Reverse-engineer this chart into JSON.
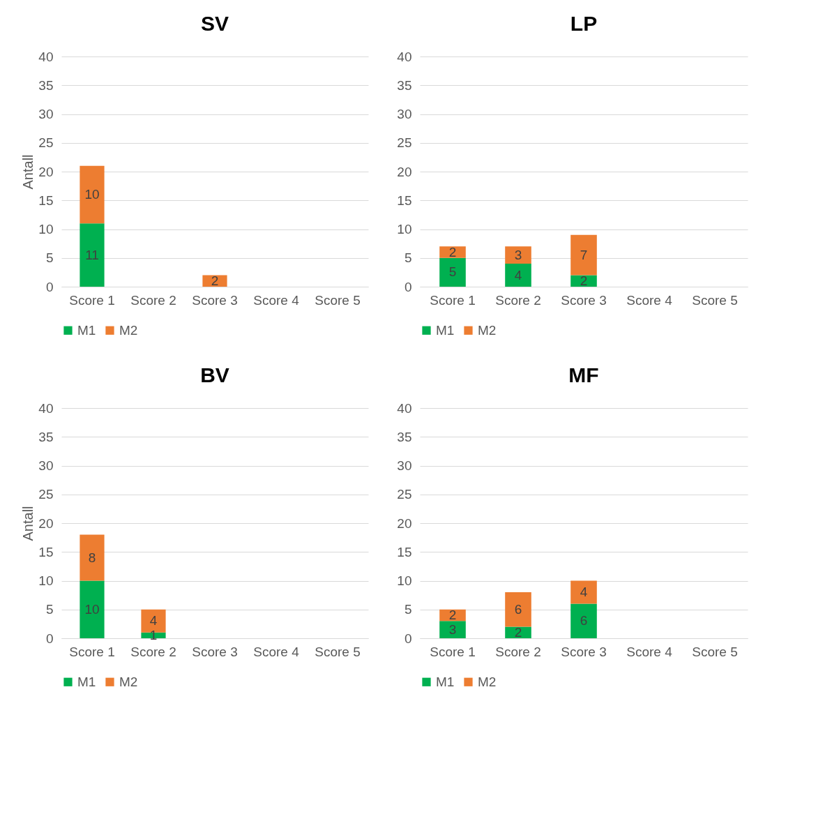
{
  "chart_data": [
    {
      "type": "bar",
      "title": "SV",
      "ylabel": "Antall",
      "categories": [
        "Score 1",
        "Score 2",
        "Score 3",
        "Score 4",
        "Score 5"
      ],
      "stacked": true,
      "ylim": [
        0,
        40
      ],
      "yticks": [
        0,
        5,
        10,
        15,
        20,
        25,
        30,
        35,
        40
      ],
      "grid": "y",
      "legend": "bottom",
      "data_labels": true,
      "series": [
        {
          "name": "M1",
          "color": "#00b050",
          "values": [
            11,
            null,
            null,
            null,
            null
          ]
        },
        {
          "name": "M2",
          "color": "#ed7d31",
          "values": [
            10,
            null,
            2,
            null,
            null
          ]
        }
      ]
    },
    {
      "type": "bar",
      "title": "LP",
      "categories": [
        "Score 1",
        "Score 2",
        "Score 3",
        "Score 4",
        "Score 5"
      ],
      "stacked": true,
      "ylim": [
        0,
        40
      ],
      "yticks": [
        0,
        5,
        10,
        15,
        20,
        25,
        30,
        35,
        40
      ],
      "grid": "y",
      "legend": "bottom",
      "data_labels": true,
      "series": [
        {
          "name": "M1",
          "color": "#00b050",
          "values": [
            5,
            4,
            2,
            null,
            null
          ]
        },
        {
          "name": "M2",
          "color": "#ed7d31",
          "values": [
            2,
            3,
            7,
            null,
            null
          ]
        }
      ]
    },
    {
      "type": "bar",
      "title": "BV",
      "ylabel": "Antall",
      "categories": [
        "Score 1",
        "Score 2",
        "Score 3",
        "Score 4",
        "Score 5"
      ],
      "stacked": true,
      "ylim": [
        0,
        40
      ],
      "yticks": [
        0,
        5,
        10,
        15,
        20,
        25,
        30,
        35,
        40
      ],
      "grid": "y",
      "legend": "bottom",
      "data_labels": true,
      "series": [
        {
          "name": "M1",
          "color": "#00b050",
          "values": [
            10,
            1,
            null,
            null,
            null
          ]
        },
        {
          "name": "M2",
          "color": "#ed7d31",
          "values": [
            8,
            4,
            null,
            null,
            null
          ]
        }
      ]
    },
    {
      "type": "bar",
      "title": "MF",
      "categories": [
        "Score 1",
        "Score 2",
        "Score 3",
        "Score 4",
        "Score 5"
      ],
      "stacked": true,
      "ylim": [
        0,
        40
      ],
      "yticks": [
        0,
        5,
        10,
        15,
        20,
        25,
        30,
        35,
        40
      ],
      "grid": "y",
      "legend": "bottom",
      "data_labels": true,
      "series": [
        {
          "name": "M1",
          "color": "#00b050",
          "values": [
            3,
            2,
            6,
            null,
            null
          ]
        },
        {
          "name": "M2",
          "color": "#ed7d31",
          "values": [
            2,
            6,
            4,
            null,
            null
          ]
        }
      ]
    }
  ]
}
